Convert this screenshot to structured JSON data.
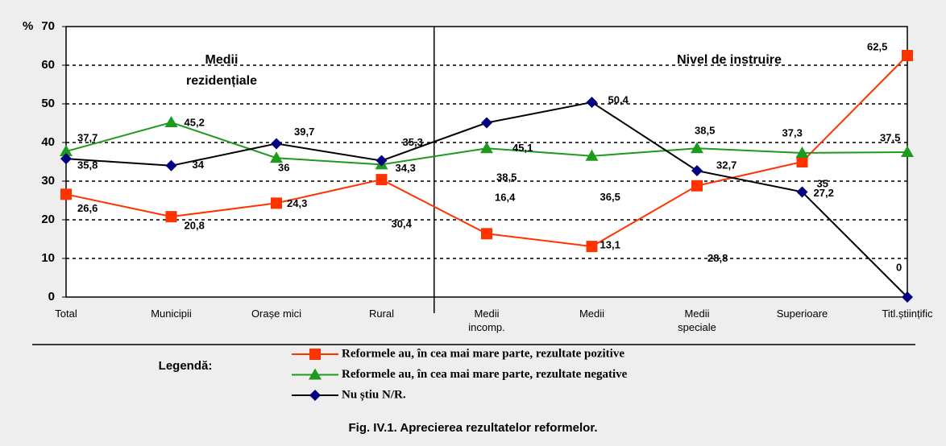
{
  "chart_data": {
    "type": "line",
    "y_label": "%",
    "categories": [
      "Total",
      "Municipii",
      "Orașe mici",
      "Rural",
      "Medii\nincomp.",
      "Medii",
      "Medii\nspeciale",
      "Superioare",
      "Titl.științific"
    ],
    "ylim": [
      0,
      70
    ],
    "yticks": [
      0,
      10,
      20,
      30,
      40,
      50,
      60,
      70
    ],
    "grid": true,
    "annotations": [
      "Medii",
      "rezidențiale",
      "Nivel de instruire"
    ],
    "legend_title": "Legendă:",
    "caption": "Fig. IV.1. Aprecierea rezultatelor reformelor.",
    "series": [
      {
        "name": "Reformele au, în cea mai mare parte, rezultate pozitive",
        "color": "#ff3300",
        "line_color": "#ff3300",
        "marker": "square",
        "values": [
          26.6,
          20.8,
          24.3,
          30.4,
          16.4,
          13.1,
          28.8,
          35,
          62.5
        ],
        "value_labels": [
          "26,6",
          "20,8",
          "24,3",
          "30,4",
          "16,4",
          "13,1",
          "28,8",
          "35",
          "62,5"
        ]
      },
      {
        "name": "Reformele au, în cea mai mare parte, rezultate negative",
        "color": "#1e9a1e",
        "line_color": "#1e9a1e",
        "marker": "triangle",
        "values": [
          37.7,
          45.2,
          36,
          34.3,
          38.5,
          36.5,
          38.5,
          37.3,
          37.5
        ],
        "value_labels": [
          "37,7",
          "45,2",
          "36",
          "34,3",
          "38,5",
          "36,5",
          "38,5",
          "37,3",
          "37,5"
        ]
      },
      {
        "name": "Nu știu N/R.",
        "color": "#000080",
        "line_color": "#000000",
        "marker": "diamond",
        "values": [
          35.8,
          34,
          39.7,
          35.3,
          45.1,
          50.4,
          32.7,
          27.2,
          0
        ],
        "value_labels": [
          "35,8",
          "34",
          "39,7",
          "35,3",
          "45,1",
          "50,4",
          "32,7",
          "27,2",
          "0"
        ]
      }
    ]
  }
}
